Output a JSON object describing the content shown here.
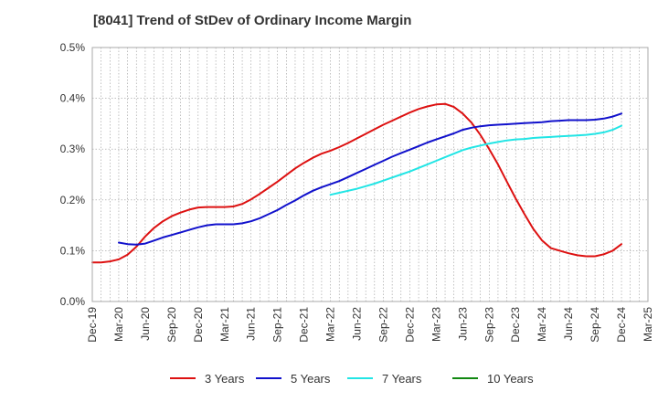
{
  "chart_data": {
    "type": "line",
    "title": "[8041]  Trend of StDev of Ordinary Income Margin",
    "xlabel": "",
    "ylabel": "",
    "ylim": [
      0,
      0.5
    ],
    "yticks": [
      0.0,
      0.1,
      0.2,
      0.3,
      0.4,
      0.5
    ],
    "ytick_labels": [
      "0.0%",
      "0.1%",
      "0.2%",
      "0.3%",
      "0.4%",
      "0.5%"
    ],
    "x_start": "2019-12",
    "x_end": "2025-03",
    "xtick_labels": [
      "Dec-19",
      "Mar-20",
      "Jun-20",
      "Sep-20",
      "Dec-20",
      "Mar-21",
      "Jun-21",
      "Sep-21",
      "Dec-21",
      "Mar-22",
      "Jun-22",
      "Sep-22",
      "Dec-22",
      "Mar-23",
      "Jun-23",
      "Sep-23",
      "Dec-23",
      "Mar-24",
      "Jun-24",
      "Sep-24",
      "Dec-24",
      "Mar-25"
    ],
    "grid": true,
    "legend_position": "bottom",
    "series": [
      {
        "name": "3 Years",
        "color": "#dd1111",
        "x": [
          "2019-12",
          "2020-01",
          "2020-02",
          "2020-03",
          "2020-04",
          "2020-05",
          "2020-06",
          "2020-07",
          "2020-08",
          "2020-09",
          "2020-10",
          "2020-11",
          "2020-12",
          "2021-01",
          "2021-02",
          "2021-03",
          "2021-04",
          "2021-05",
          "2021-06",
          "2021-07",
          "2021-08",
          "2021-09",
          "2021-10",
          "2021-11",
          "2021-12",
          "2022-01",
          "2022-02",
          "2022-03",
          "2022-04",
          "2022-05",
          "2022-06",
          "2022-07",
          "2022-08",
          "2022-09",
          "2022-10",
          "2022-11",
          "2022-12",
          "2023-01",
          "2023-02",
          "2023-03",
          "2023-04",
          "2023-05",
          "2023-06",
          "2023-07",
          "2023-08",
          "2023-09",
          "2023-10",
          "2023-11",
          "2023-12",
          "2024-01",
          "2024-02",
          "2024-03",
          "2024-04",
          "2024-05",
          "2024-06",
          "2024-07",
          "2024-08",
          "2024-09",
          "2024-10",
          "2024-11",
          "2024-12"
        ],
        "values": [
          0.077,
          0.077,
          0.079,
          0.083,
          0.092,
          0.108,
          0.128,
          0.145,
          0.158,
          0.168,
          0.175,
          0.181,
          0.185,
          0.186,
          0.186,
          0.186,
          0.187,
          0.192,
          0.201,
          0.212,
          0.224,
          0.236,
          0.249,
          0.262,
          0.273,
          0.283,
          0.291,
          0.297,
          0.304,
          0.312,
          0.321,
          0.33,
          0.339,
          0.348,
          0.356,
          0.364,
          0.372,
          0.379,
          0.384,
          0.388,
          0.389,
          0.383,
          0.37,
          0.352,
          0.328,
          0.3,
          0.27,
          0.236,
          0.203,
          0.172,
          0.143,
          0.12,
          0.105,
          0.1,
          0.095,
          0.091,
          0.089,
          0.089,
          0.093,
          0.1,
          0.113
        ]
      },
      {
        "name": "5 Years",
        "color": "#1111cc",
        "x": [
          "2020-03",
          "2020-04",
          "2020-05",
          "2020-06",
          "2020-07",
          "2020-08",
          "2020-09",
          "2020-10",
          "2020-11",
          "2020-12",
          "2021-01",
          "2021-02",
          "2021-03",
          "2021-04",
          "2021-05",
          "2021-06",
          "2021-07",
          "2021-08",
          "2021-09",
          "2021-10",
          "2021-11",
          "2021-12",
          "2022-01",
          "2022-02",
          "2022-03",
          "2022-04",
          "2022-05",
          "2022-06",
          "2022-07",
          "2022-08",
          "2022-09",
          "2022-10",
          "2022-11",
          "2022-12",
          "2023-01",
          "2023-02",
          "2023-03",
          "2023-04",
          "2023-05",
          "2023-06",
          "2023-07",
          "2023-08",
          "2023-09",
          "2023-10",
          "2023-11",
          "2023-12",
          "2024-01",
          "2024-02",
          "2024-03",
          "2024-04",
          "2024-05",
          "2024-06",
          "2024-07",
          "2024-08",
          "2024-09",
          "2024-10",
          "2024-11",
          "2024-12"
        ],
        "values": [
          0.116,
          0.113,
          0.112,
          0.114,
          0.12,
          0.126,
          0.131,
          0.136,
          0.141,
          0.146,
          0.15,
          0.152,
          0.152,
          0.152,
          0.154,
          0.158,
          0.164,
          0.172,
          0.18,
          0.19,
          0.199,
          0.209,
          0.218,
          0.225,
          0.231,
          0.237,
          0.245,
          0.253,
          0.261,
          0.269,
          0.277,
          0.285,
          0.292,
          0.299,
          0.306,
          0.313,
          0.319,
          0.325,
          0.331,
          0.338,
          0.342,
          0.345,
          0.347,
          0.348,
          0.349,
          0.35,
          0.351,
          0.352,
          0.353,
          0.355,
          0.356,
          0.357,
          0.357,
          0.357,
          0.358,
          0.36,
          0.364,
          0.37
        ]
      },
      {
        "name": "7 Years",
        "color": "#22e5e5",
        "x": [
          "2022-03",
          "2022-04",
          "2022-05",
          "2022-06",
          "2022-07",
          "2022-08",
          "2022-09",
          "2022-10",
          "2022-11",
          "2022-12",
          "2023-01",
          "2023-02",
          "2023-03",
          "2023-04",
          "2023-05",
          "2023-06",
          "2023-07",
          "2023-08",
          "2023-09",
          "2023-10",
          "2023-11",
          "2023-12",
          "2024-01",
          "2024-02",
          "2024-03",
          "2024-04",
          "2024-05",
          "2024-06",
          "2024-07",
          "2024-08",
          "2024-09",
          "2024-10",
          "2024-11",
          "2024-12"
        ],
        "values": [
          0.21,
          0.214,
          0.218,
          0.222,
          0.227,
          0.232,
          0.238,
          0.244,
          0.25,
          0.256,
          0.263,
          0.27,
          0.277,
          0.284,
          0.291,
          0.298,
          0.303,
          0.307,
          0.311,
          0.314,
          0.317,
          0.319,
          0.32,
          0.322,
          0.323,
          0.324,
          0.325,
          0.326,
          0.327,
          0.328,
          0.33,
          0.333,
          0.338,
          0.346
        ]
      },
      {
        "name": "10 Years",
        "color": "#118811",
        "x": [],
        "values": []
      }
    ]
  }
}
